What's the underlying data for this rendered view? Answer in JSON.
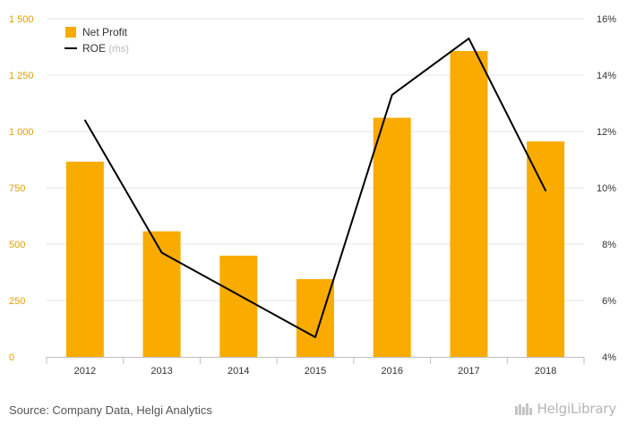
{
  "chart_data": {
    "type": "bar+line",
    "categories": [
      "2012",
      "2013",
      "2014",
      "2015",
      "2016",
      "2017",
      "2018"
    ],
    "series": [
      {
        "name": "Net Profit",
        "type": "bar",
        "axis": "left",
        "color": "#f9ab00",
        "values": [
          866,
          557,
          449,
          345,
          1061,
          1357,
          956
        ]
      },
      {
        "name": "ROE",
        "name_suffix": "(rhs)",
        "type": "line",
        "axis": "right",
        "color": "#000000",
        "values": [
          12.4,
          7.7,
          6.2,
          4.7,
          13.3,
          15.3,
          9.9
        ]
      }
    ],
    "y_left": {
      "ylim": [
        0,
        1500
      ],
      "ticks": [
        0,
        250,
        500,
        750,
        1000,
        1250,
        1500
      ],
      "tick_labels": [
        "0",
        "250",
        "500",
        "750",
        "1 000",
        "1 250",
        "1 500"
      ]
    },
    "y_right": {
      "ylim": [
        4,
        16
      ],
      "ticks": [
        4,
        6,
        8,
        10,
        12,
        14,
        16
      ],
      "tick_labels": [
        "4%",
        "6%",
        "8%",
        "10%",
        "12%",
        "14%",
        "16%"
      ]
    },
    "grid": true,
    "legend_position": "top-left"
  },
  "footer": {
    "source": "Source: Company Data, Helgi Analytics",
    "logo": "HelgiLibrary"
  }
}
